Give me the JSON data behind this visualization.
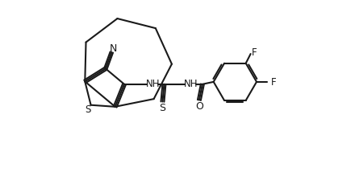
{
  "background_color": "#ffffff",
  "line_color": "#1a1a1a",
  "line_width": 1.5,
  "font_size": 8.5,
  "figsize": [
    4.4,
    2.3
  ],
  "dpi": 100,
  "xlim": [
    0,
    440
  ],
  "ylim": [
    0,
    230
  ]
}
